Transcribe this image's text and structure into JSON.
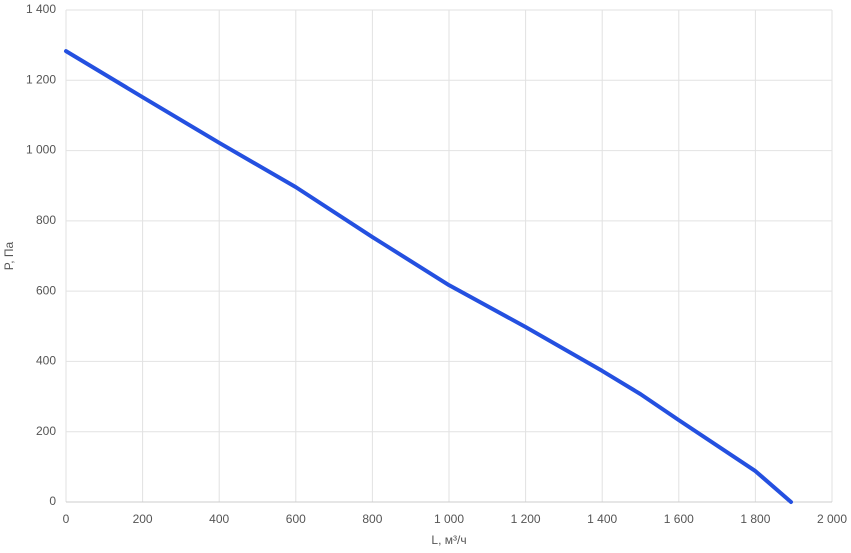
{
  "chart_data": {
    "type": "line",
    "x_label": "L, м³/ч",
    "y_label": "P, Па",
    "x": [
      0,
      200,
      400,
      600,
      800,
      1000,
      1200,
      1400,
      1500,
      1600,
      1800,
      1893
    ],
    "series": [
      {
        "color": "#2450e0",
        "values": [
          1283,
          1152,
          1022,
          896,
          754,
          617,
          498,
          373,
          307,
          233,
          88,
          0
        ]
      }
    ],
    "xlim": [
      0,
      2000
    ],
    "xticks": [
      0,
      200,
      400,
      600,
      800,
      {
        "value": 1000,
        "label": "1 000"
      },
      {
        "value": 1200,
        "label": "1 200"
      },
      {
        "value": 1400,
        "label": "1 400"
      },
      {
        "value": 1600,
        "label": "1 600"
      },
      {
        "value": 1800,
        "label": "1 800"
      },
      {
        "value": 2000,
        "label": "2 000"
      }
    ],
    "ylim": [
      0,
      1400
    ],
    "yticks": [
      0,
      200,
      400,
      600,
      800,
      {
        "value": 1000,
        "label": "1 000"
      },
      {
        "value": 1200,
        "label": "1 200"
      },
      {
        "value": 1400,
        "label": "1 400"
      }
    ],
    "grid": true
  }
}
